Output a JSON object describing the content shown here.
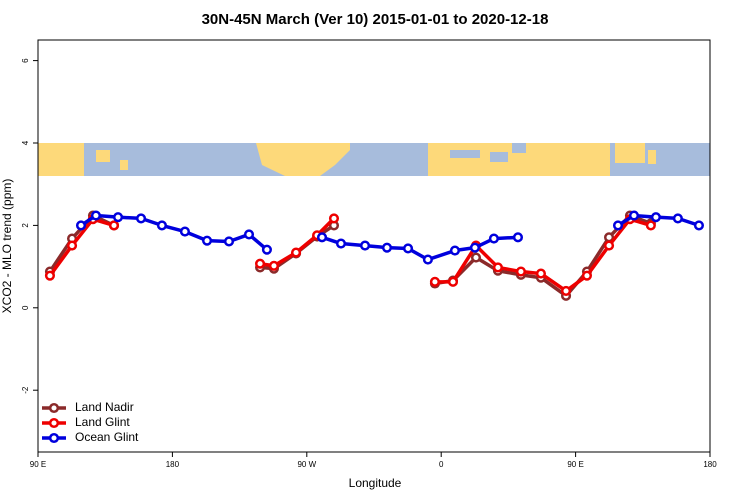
{
  "chart_data": {
    "type": "line",
    "title": "30N-45N March (Ver 10)   2015-01-01 to 2020-12-18",
    "x_label": "Longitude",
    "y_label": "XCO2 - MLO trend (ppm)",
    "xlim": [
      90,
      540
    ],
    "xticks": [
      {
        "value": 90,
        "label": "90 E"
      },
      180,
      {
        "value": 270,
        "label": "90 W"
      },
      {
        "value": 360,
        "label": "0"
      },
      {
        "value": 450,
        "label": "90 E"
      },
      180
    ],
    "ylim": [
      -3.5,
      6.5
    ],
    "yticks": [
      -2,
      0,
      2,
      4,
      6
    ],
    "legend": "bottom-left",
    "series": [
      {
        "name": "Land Nadir",
        "color": "#8b2a2a",
        "x": [
          98,
          112.8,
          126.8,
          140.9,
          190,
          238.7,
          248.0,
          262.8,
          276.9,
          288.2,
          320,
          355.8,
          367.9,
          383.3,
          398,
          413.4,
          426.8,
          443.6,
          457.6,
          472.4,
          486.4,
          500.4
        ],
        "values": [
          0.88,
          1.68,
          2.24,
          2.0,
          null,
          0.98,
          0.95,
          1.32,
          1.73,
          2.0,
          null,
          0.59,
          0.66,
          1.22,
          0.9,
          0.8,
          0.73,
          0.29,
          0.88,
          1.71,
          2.24,
          2.05
        ]
      },
      {
        "name": "Land Glint",
        "color": "#ee0000",
        "x": [
          98,
          112.8,
          126.8,
          140.9,
          190,
          238.7,
          248.0,
          262.8,
          276.9,
          288.2,
          320,
          355.8,
          367.9,
          383.3,
          398,
          413.4,
          426.8,
          443.6,
          457.6,
          472.4,
          486.4,
          500.4
        ],
        "values": [
          0.78,
          1.51,
          2.15,
          2.0,
          null,
          1.07,
          1.02,
          1.34,
          1.76,
          2.17,
          null,
          0.63,
          0.63,
          1.51,
          0.98,
          0.88,
          0.83,
          0.41,
          0.78,
          1.51,
          2.15,
          2.0
        ]
      },
      {
        "name": "Ocean Glint",
        "color": "#0000dd",
        "x": [
          118.8,
          128.8,
          143.6,
          159,
          173,
          188.4,
          203.2,
          217.9,
          231.3,
          243.3,
          260,
          280.2,
          292.9,
          309,
          323.7,
          337.8,
          351.1,
          369.2,
          382.6,
          395.3,
          411.4,
          445,
          478.4,
          489.1,
          503.8,
          518.5,
          532.6
        ],
        "values": [
          2.0,
          2.24,
          2.2,
          2.17,
          2.0,
          1.85,
          1.63,
          1.61,
          1.78,
          1.41,
          null,
          1.71,
          1.56,
          1.51,
          1.46,
          1.44,
          1.17,
          1.39,
          1.46,
          1.68,
          1.71,
          null,
          2.0,
          2.24,
          2.2,
          2.17,
          2.0
        ]
      }
    ]
  }
}
